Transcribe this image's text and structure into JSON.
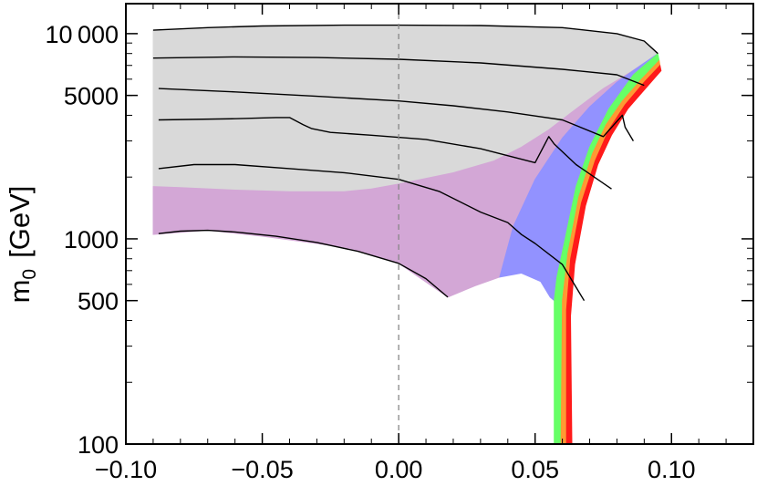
{
  "chart_data": {
    "type": "area",
    "title": "",
    "xlabel": "",
    "ylabel": "m",
    "ylabel_subscript": "0",
    "ylabel_unit": "[GeV]",
    "xlim": [
      -0.1,
      0.13
    ],
    "ylim": [
      100,
      14000
    ],
    "yscale": "log",
    "x_ticks": [
      {
        "value": -0.1,
        "label": "−0.10"
      },
      {
        "value": -0.05,
        "label": "−0.05"
      },
      {
        "value": 0.0,
        "label": "0.00"
      },
      {
        "value": 0.05,
        "label": "0.05"
      },
      {
        "value": 0.1,
        "label": "0.10"
      }
    ],
    "y_ticks": [
      {
        "value": 100,
        "label": "100"
      },
      {
        "value": 500,
        "label": "500"
      },
      {
        "value": 1000,
        "label": "1000"
      },
      {
        "value": 5000,
        "label": "5000"
      },
      {
        "value": 10000,
        "label": "10 000"
      }
    ],
    "reference_line": {
      "x": 0.0,
      "style": "dashed",
      "color": "#888888"
    },
    "regions": [
      {
        "name": "gray",
        "color": "#d9d9d9",
        "points": [
          [
            -0.09,
            10400
          ],
          [
            -0.07,
            10700
          ],
          [
            -0.05,
            10900
          ],
          [
            -0.02,
            11000
          ],
          [
            0.0,
            11000
          ],
          [
            0.03,
            10950
          ],
          [
            0.06,
            10700
          ],
          [
            0.08,
            10000
          ],
          [
            0.09,
            9200
          ],
          [
            0.095,
            8000
          ],
          [
            0.09,
            7200
          ],
          [
            0.085,
            6500
          ],
          [
            0.075,
            5400
          ],
          [
            0.065,
            4300
          ],
          [
            0.055,
            3400
          ],
          [
            0.045,
            2800
          ],
          [
            0.035,
            2400
          ],
          [
            0.02,
            2100
          ],
          [
            0.0,
            1850
          ],
          [
            -0.01,
            1750
          ],
          [
            -0.02,
            1700
          ],
          [
            -0.04,
            1700
          ],
          [
            -0.06,
            1730
          ],
          [
            -0.08,
            1780
          ],
          [
            -0.09,
            1800
          ],
          [
            -0.09,
            5500
          ]
        ]
      },
      {
        "name": "purple",
        "color": "#d3a7d6",
        "points": [
          [
            -0.09,
            1800
          ],
          [
            -0.08,
            1780
          ],
          [
            -0.06,
            1730
          ],
          [
            -0.04,
            1700
          ],
          [
            -0.02,
            1700
          ],
          [
            -0.01,
            1750
          ],
          [
            0.0,
            1850
          ],
          [
            0.02,
            2100
          ],
          [
            0.035,
            2400
          ],
          [
            0.045,
            2800
          ],
          [
            0.055,
            3400
          ],
          [
            0.065,
            4300
          ],
          [
            0.075,
            5400
          ],
          [
            0.085,
            6500
          ],
          [
            0.09,
            7200
          ],
          [
            0.08,
            5800
          ],
          [
            0.07,
            4400
          ],
          [
            0.06,
            3100
          ],
          [
            0.05,
            1950
          ],
          [
            0.042,
            1150
          ],
          [
            0.037,
            650
          ],
          [
            0.028,
            590
          ],
          [
            0.018,
            520
          ],
          [
            0.0,
            760
          ],
          [
            -0.02,
            910
          ],
          [
            -0.05,
            1030
          ],
          [
            -0.07,
            1100
          ],
          [
            -0.09,
            1050
          ]
        ]
      },
      {
        "name": "blue",
        "color": "#9292ff",
        "points": [
          [
            0.037,
            650
          ],
          [
            0.042,
            1150
          ],
          [
            0.05,
            1950
          ],
          [
            0.06,
            3100
          ],
          [
            0.07,
            4400
          ],
          [
            0.08,
            5800
          ],
          [
            0.09,
            7200
          ],
          [
            0.095,
            8000
          ],
          [
            0.086,
            6300
          ],
          [
            0.077,
            4300
          ],
          [
            0.07,
            2800
          ],
          [
            0.065,
            1800
          ],
          [
            0.061,
            1000
          ],
          [
            0.058,
            650
          ],
          [
            0.057,
            500
          ],
          [
            0.0555,
            520
          ],
          [
            0.052,
            620
          ],
          [
            0.045,
            680
          ]
        ]
      },
      {
        "name": "green",
        "color": "#66ff66",
        "points": [
          [
            0.057,
            100
          ],
          [
            0.057,
            500
          ],
          [
            0.058,
            650
          ],
          [
            0.061,
            1000
          ],
          [
            0.065,
            1800
          ],
          [
            0.07,
            2800
          ],
          [
            0.077,
            4300
          ],
          [
            0.086,
            6300
          ],
          [
            0.095,
            8000
          ],
          [
            0.0955,
            7400
          ],
          [
            0.089,
            6000
          ],
          [
            0.082,
            4700
          ],
          [
            0.076,
            3600
          ],
          [
            0.071,
            2600
          ],
          [
            0.066,
            1600
          ],
          [
            0.062,
            850
          ],
          [
            0.06,
            500
          ],
          [
            0.0595,
            100
          ]
        ]
      },
      {
        "name": "orange",
        "color": "#ff9933",
        "points": [
          [
            0.0595,
            100
          ],
          [
            0.06,
            500
          ],
          [
            0.062,
            850
          ],
          [
            0.066,
            1600
          ],
          [
            0.071,
            2600
          ],
          [
            0.076,
            3600
          ],
          [
            0.082,
            4700
          ],
          [
            0.089,
            6000
          ],
          [
            0.0955,
            7400
          ],
          [
            0.0958,
            7000
          ],
          [
            0.09,
            5800
          ],
          [
            0.083,
            4500
          ],
          [
            0.077,
            3400
          ],
          [
            0.072,
            2400
          ],
          [
            0.067,
            1500
          ],
          [
            0.063,
            800
          ],
          [
            0.0615,
            450
          ],
          [
            0.0615,
            100
          ]
        ]
      },
      {
        "name": "red",
        "color": "#ff1a1a",
        "points": [
          [
            0.0615,
            100
          ],
          [
            0.0615,
            450
          ],
          [
            0.063,
            800
          ],
          [
            0.067,
            1500
          ],
          [
            0.072,
            2400
          ],
          [
            0.077,
            3400
          ],
          [
            0.083,
            4500
          ],
          [
            0.09,
            5800
          ],
          [
            0.0958,
            7000
          ],
          [
            0.0962,
            6600
          ],
          [
            0.091,
            5500
          ],
          [
            0.084,
            4300
          ],
          [
            0.078,
            3200
          ],
          [
            0.073,
            2300
          ],
          [
            0.0685,
            1450
          ],
          [
            0.0645,
            750
          ],
          [
            0.063,
            420
          ],
          [
            0.0635,
            100
          ]
        ]
      }
    ],
    "contours": [
      {
        "name": "top-boundary",
        "points": [
          [
            -0.09,
            10400
          ],
          [
            -0.07,
            10700
          ],
          [
            -0.05,
            10900
          ],
          [
            -0.02,
            11000
          ],
          [
            0.0,
            11000
          ],
          [
            0.03,
            10950
          ],
          [
            0.06,
            10700
          ],
          [
            0.08,
            10000
          ],
          [
            0.09,
            9200
          ],
          [
            0.095,
            8000
          ]
        ]
      },
      {
        "name": "contour-1",
        "points": [
          [
            -0.09,
            7600
          ],
          [
            -0.06,
            7700
          ],
          [
            -0.03,
            7650
          ],
          [
            0.0,
            7500
          ],
          [
            0.03,
            7200
          ],
          [
            0.06,
            6700
          ],
          [
            0.08,
            6300
          ],
          [
            0.09,
            5600
          ]
        ]
      },
      {
        "name": "contour-2",
        "points": [
          [
            -0.088,
            5400
          ],
          [
            -0.06,
            5200
          ],
          [
            -0.03,
            4950
          ],
          [
            0.0,
            4700
          ],
          [
            0.02,
            4450
          ],
          [
            0.04,
            4150
          ],
          [
            0.06,
            3800
          ],
          [
            0.075,
            3150
          ],
          [
            0.082,
            4000
          ],
          [
            0.083,
            3500
          ],
          [
            0.086,
            3000
          ]
        ]
      },
      {
        "name": "contour-3",
        "points": [
          [
            -0.088,
            3800
          ],
          [
            -0.06,
            3850
          ],
          [
            -0.045,
            3900
          ],
          [
            -0.04,
            3900
          ],
          [
            -0.035,
            3600
          ],
          [
            -0.032,
            3450
          ],
          [
            -0.025,
            3300
          ],
          [
            -0.01,
            3200
          ],
          [
            0.01,
            3050
          ],
          [
            0.03,
            2750
          ],
          [
            0.05,
            2350
          ],
          [
            0.055,
            3150
          ],
          [
            0.057,
            2900
          ],
          [
            0.065,
            2300
          ],
          [
            0.078,
            1750
          ]
        ]
      },
      {
        "name": "contour-4",
        "points": [
          [
            -0.088,
            2200
          ],
          [
            -0.075,
            2300
          ],
          [
            -0.06,
            2300
          ],
          [
            -0.04,
            2200
          ],
          [
            -0.02,
            2100
          ],
          [
            0.0,
            1950
          ],
          [
            0.015,
            1700
          ],
          [
            0.03,
            1350
          ],
          [
            0.04,
            1200
          ],
          [
            0.045,
            1050
          ],
          [
            0.05,
            950
          ],
          [
            0.06,
            750
          ],
          [
            0.068,
            500
          ]
        ]
      },
      {
        "name": "contour-5",
        "points": [
          [
            -0.088,
            1060
          ],
          [
            -0.08,
            1090
          ],
          [
            -0.07,
            1100
          ],
          [
            -0.06,
            1080
          ],
          [
            -0.045,
            1030
          ],
          [
            -0.03,
            960
          ],
          [
            -0.015,
            870
          ],
          [
            0.0,
            760
          ],
          [
            0.01,
            640
          ],
          [
            0.018,
            520
          ]
        ]
      }
    ]
  }
}
